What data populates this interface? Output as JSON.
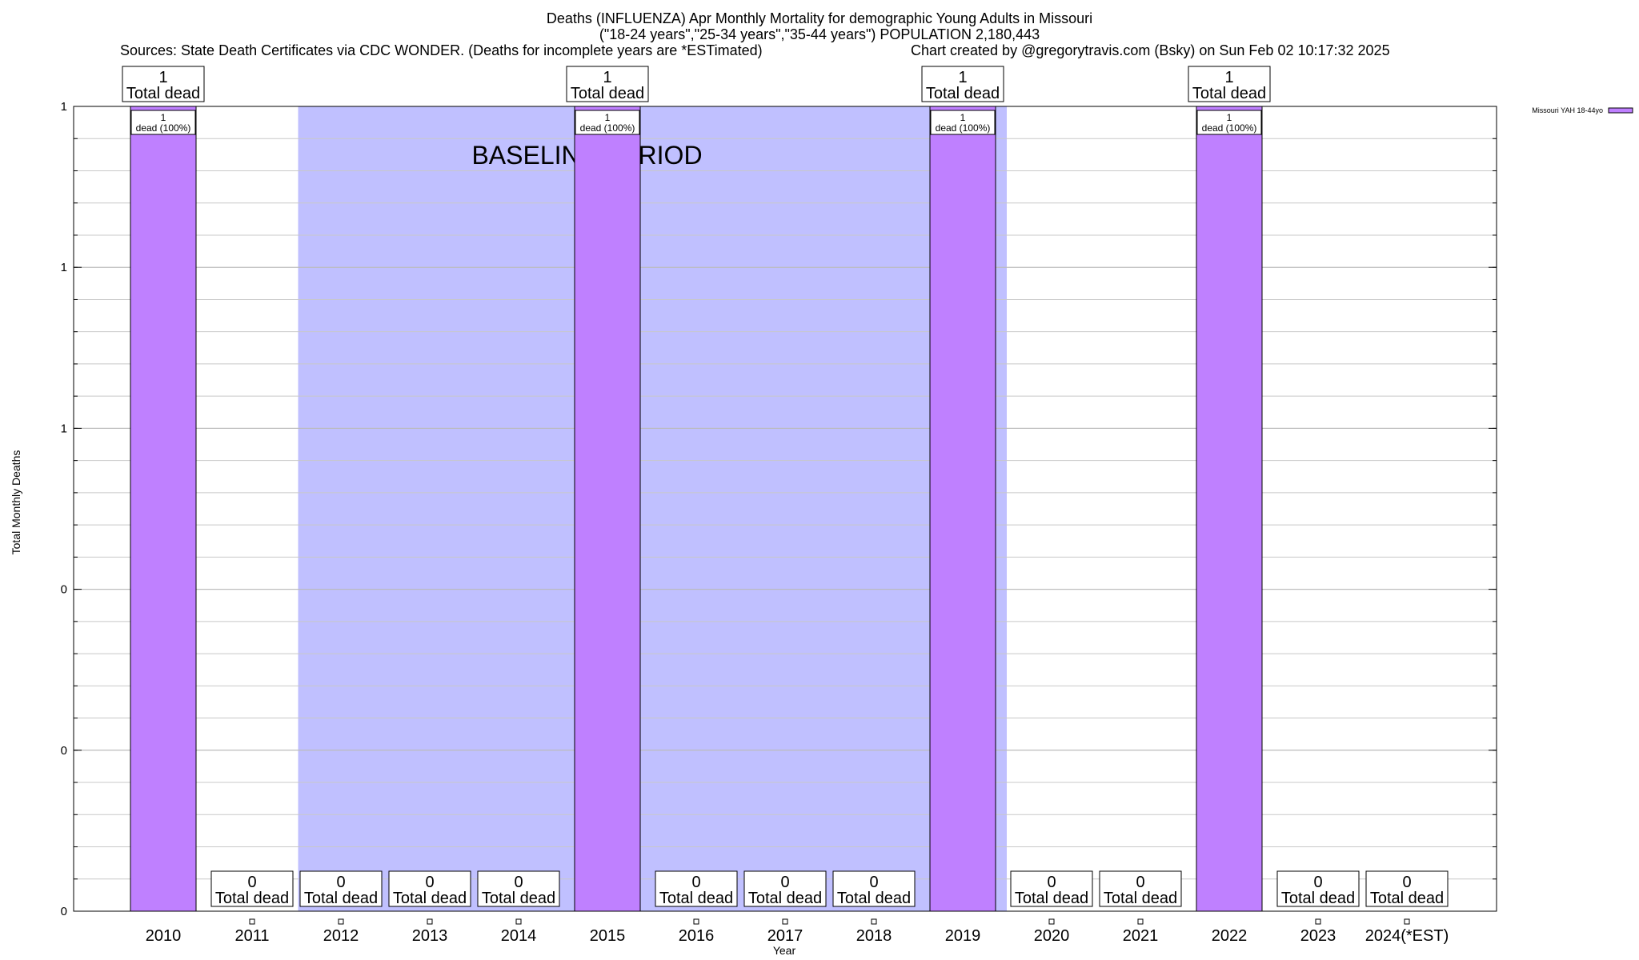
{
  "chart_data": {
    "type": "bar",
    "title": "Deaths (INFLUENZA) Apr Monthly Mortality for demographic Young Adults in Missouri",
    "subtitle": "(\"18-24 years\",\"25-34 years\",\"35-44 years\") POPULATION 2,180,443",
    "source_note": "Sources: State Death Certificates via CDC WONDER. (Deaths for incomplete years are *ESTimated)",
    "credit_note": "Chart created by @gregorytravis.com (Bsky) on Sun Feb 02 10:17:32 2025",
    "xlabel": "Year",
    "ylabel": "Total Monthly Deaths",
    "categories": [
      "2010",
      "2011",
      "2012",
      "2013",
      "2014",
      "2015",
      "2016",
      "2017",
      "2018",
      "2019",
      "2020",
      "2021",
      "2022",
      "2023",
      "2024(*EST)"
    ],
    "values": [
      1,
      0,
      0,
      0,
      0,
      1,
      0,
      0,
      0,
      1,
      0,
      0,
      1,
      0,
      0
    ],
    "ylim": [
      0,
      1
    ],
    "ytick_values": [
      0,
      0.2,
      0.4,
      0.6,
      0.8,
      1.0
    ],
    "ytick_labels": [
      "0",
      "0",
      "0",
      "1",
      "1",
      "1"
    ],
    "total_labels": [
      "1",
      "0",
      "0",
      "0",
      "0",
      "1",
      "0",
      "0",
      "0",
      "1",
      "0",
      "0",
      "1",
      "0",
      "0"
    ],
    "total_suffix": "Total dead",
    "inner_count_labels": [
      "1",
      "",
      "",
      "",
      "",
      "1",
      "",
      "",
      "",
      "1",
      "",
      "",
      "1",
      "",
      ""
    ],
    "inner_pct_label": "dead (100%)",
    "series": [
      {
        "name": "Missouri YAH 18-44yo",
        "values": [
          1,
          0,
          0,
          0,
          0,
          1,
          0,
          0,
          0,
          1,
          0,
          0,
          1,
          0,
          0
        ],
        "color": "#bf80ff"
      }
    ],
    "baseline_period": {
      "label": "BASELINE PERIOD",
      "start_category": "2012",
      "end_category": "2019",
      "color": "#c0c0ff"
    },
    "grid": true,
    "legend_position": "top-right"
  }
}
